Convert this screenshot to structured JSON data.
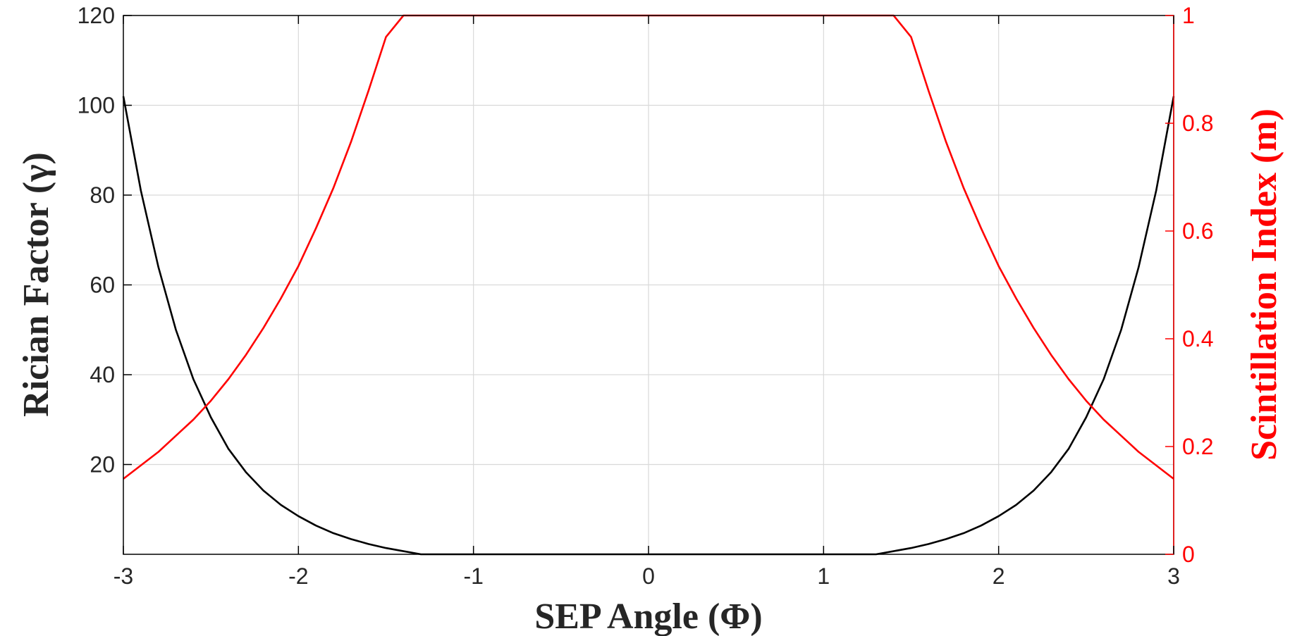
{
  "chart_data": {
    "type": "line",
    "xlabel": "SEP Angle (Φ)",
    "ylabel_left": "Rician Factor (γ)",
    "ylabel_right": "Scintillation Index (m)",
    "xlim": [
      -3,
      3
    ],
    "ylim_left": [
      0,
      120
    ],
    "ylim_right": [
      0,
      1
    ],
    "x_ticks": [
      -3,
      -2,
      -1,
      0,
      1,
      2,
      3
    ],
    "x_tick_labels": [
      "-3",
      "-2",
      "-1",
      "0",
      "1",
      "2",
      "3"
    ],
    "y_left_ticks": [
      20,
      40,
      60,
      80,
      100,
      120
    ],
    "y_left_tick_labels": [
      "20",
      "40",
      "60",
      "80",
      "100",
      "120"
    ],
    "y_right_ticks": [
      0,
      0.2,
      0.4,
      0.6,
      0.8,
      1
    ],
    "y_right_tick_labels": [
      "0",
      "0.2",
      "0.4",
      "0.6",
      "0.8",
      "1"
    ],
    "grid": true,
    "colors": {
      "left_axis": "#000000",
      "right_axis": "#ff0000",
      "grid": "#d9d9d9"
    },
    "series": [
      {
        "axis": "left",
        "color": "#000000",
        "x": [
          -3.0,
          -2.9,
          -2.8,
          -2.7,
          -2.6,
          -2.5,
          -2.4,
          -2.3,
          -2.2,
          -2.1,
          -2.0,
          -1.9,
          -1.8,
          -1.7,
          -1.6,
          -1.5,
          -1.4,
          -1.3,
          1.3,
          1.4,
          1.5,
          1.6,
          1.7,
          1.8,
          1.9,
          2.0,
          2.1,
          2.2,
          2.3,
          2.4,
          2.5,
          2.6,
          2.7,
          2.8,
          2.9,
          3.0
        ],
        "y": [
          102,
          81,
          64,
          50,
          39,
          30.5,
          23.5,
          18.3,
          14.2,
          11.0,
          8.5,
          6.4,
          4.7,
          3.4,
          2.3,
          1.4,
          0.7,
          0,
          0,
          0.7,
          1.4,
          2.3,
          3.4,
          4.7,
          6.4,
          8.5,
          11.0,
          14.2,
          18.3,
          23.5,
          30.5,
          39,
          50,
          64,
          81,
          102
        ]
      },
      {
        "axis": "right",
        "color": "#ff0000",
        "x": [
          -3.0,
          -2.9,
          -2.8,
          -2.7,
          -2.6,
          -2.5,
          -2.4,
          -2.3,
          -2.2,
          -2.1,
          -2.0,
          -1.9,
          -1.8,
          -1.7,
          -1.6,
          -1.5,
          -1.4,
          -1.3,
          1.3,
          1.4,
          1.5,
          1.6,
          1.7,
          1.8,
          1.9,
          2.0,
          2.1,
          2.2,
          2.3,
          2.4,
          2.5,
          2.6,
          2.7,
          2.8,
          2.9,
          3.0
        ],
        "y": [
          0.14,
          0.165,
          0.19,
          0.22,
          0.25,
          0.285,
          0.325,
          0.37,
          0.42,
          0.475,
          0.535,
          0.605,
          0.68,
          0.765,
          0.86,
          0.96,
          1.0,
          1.0,
          1.0,
          1.0,
          0.96,
          0.86,
          0.765,
          0.68,
          0.605,
          0.535,
          0.475,
          0.42,
          0.37,
          0.325,
          0.285,
          0.25,
          0.22,
          0.19,
          0.165,
          0.14
        ]
      }
    ]
  }
}
